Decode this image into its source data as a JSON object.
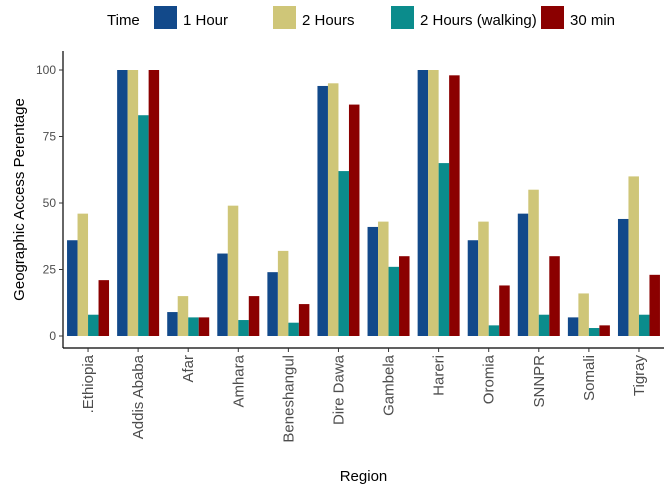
{
  "chart_data": {
    "type": "bar",
    "title": "",
    "xlabel": "Region",
    "ylabel": "Geographic Access Perentage",
    "ylim": [
      0,
      100
    ],
    "yticks": [
      0,
      25,
      50,
      75,
      100
    ],
    "grid": false,
    "legend_position": "top",
    "legend_title": "Time",
    "categories": [
      ".Ethiopia",
      "Addis Ababa",
      "Afar",
      "Amhara",
      "Beneshangul",
      "Dire Dawa",
      "Gambela",
      "Hareri",
      "Oromia",
      "SNNPR",
      "Somali",
      "Tigray"
    ],
    "series": [
      {
        "name": "1 Hour",
        "color": "#12498a",
        "values": [
          36,
          100,
          9,
          31,
          24,
          94,
          41,
          100,
          36,
          46,
          7,
          44
        ]
      },
      {
        "name": "2 Hours",
        "color": "#cfc678",
        "values": [
          46,
          100,
          15,
          49,
          32,
          95,
          43,
          100,
          43,
          55,
          16,
          60
        ]
      },
      {
        "name": "2 Hours (walking)",
        "color": "#0b8c8c",
        "values": [
          8,
          83,
          7,
          6,
          5,
          62,
          26,
          65,
          4,
          8,
          3,
          8
        ]
      },
      {
        "name": "30 min",
        "color": "#8b0000",
        "values": [
          21,
          100,
          7,
          15,
          12,
          87,
          30,
          98,
          19,
          30,
          4,
          23
        ]
      }
    ]
  }
}
